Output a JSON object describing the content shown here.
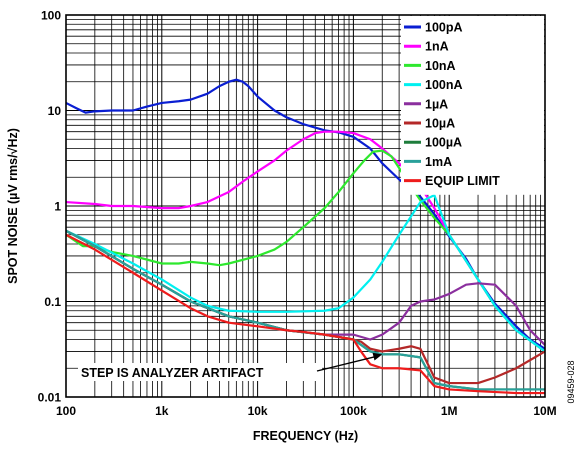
{
  "figure_id": "09459-028",
  "chart_data": {
    "type": "line",
    "xlabel": "FREQUENCY (Hz)",
    "ylabel": "SPOT NOISE (µV rms/√Hz)",
    "xscale": "log",
    "yscale": "log",
    "xlim": [
      100,
      10000000
    ],
    "ylim": [
      0.01,
      100
    ],
    "xticks": [
      100,
      1000,
      10000,
      100000,
      1000000,
      10000000
    ],
    "xtick_labels": [
      "100",
      "1k",
      "10k",
      "100k",
      "1M",
      "10M"
    ],
    "yticks": [
      0.01,
      0.1,
      1,
      10,
      100
    ],
    "ytick_labels": [
      "0.01",
      "0.1",
      "1",
      "10",
      "100"
    ],
    "grid": true,
    "legend_position": "top-right",
    "annotations": [
      {
        "text": "STEP IS ANALYZER ARTIFACT",
        "arrow_to": {
          "x": 200000,
          "y": 0.03
        }
      }
    ],
    "series": [
      {
        "name": "100pA",
        "color": "#0a1ed2",
        "x": [
          100,
          130,
          160,
          200,
          300,
          500,
          700,
          1000,
          1500,
          2000,
          3000,
          4000,
          5000,
          6000,
          7000,
          8000,
          10000,
          15000,
          20000,
          30000,
          50000,
          70000,
          100000,
          150000,
          200000,
          300000,
          500000,
          700000,
          1000000,
          1500000,
          2000000,
          3000000,
          5000000,
          7000000,
          10000000
        ],
        "y": [
          12,
          10.5,
          9.5,
          9.8,
          10,
          10,
          11,
          12,
          12.5,
          13,
          15,
          18,
          20,
          21,
          20,
          18,
          14,
          10,
          8.5,
          7.2,
          6.2,
          5.9,
          5.3,
          4,
          2.8,
          1.9,
          1.25,
          0.82,
          0.48,
          0.28,
          0.17,
          0.095,
          0.055,
          0.04,
          0.032
        ]
      },
      {
        "name": "1nA",
        "color": "#ff00ff",
        "x": [
          100,
          200,
          300,
          500,
          1000,
          1500,
          2000,
          3000,
          5000,
          7000,
          10000,
          15000,
          20000,
          30000,
          40000,
          50000,
          70000,
          100000,
          150000,
          200000,
          300000,
          500000,
          700000,
          1000000,
          2000000,
          3000000,
          5000000,
          10000000
        ],
        "y": [
          1.1,
          1.05,
          1.0,
          1.0,
          0.95,
          0.95,
          1.0,
          1.1,
          1.4,
          1.8,
          2.3,
          3.0,
          3.8,
          5.0,
          5.8,
          6.0,
          6.0,
          5.8,
          5.0,
          4.0,
          2.8,
          1.6,
          0.95,
          0.5,
          0.17,
          0.09,
          0.05,
          0.03
        ]
      },
      {
        "name": "10nA",
        "color": "#2ee82e",
        "x": [
          100,
          150,
          200,
          300,
          500,
          1000,
          1500,
          2000,
          3000,
          4000,
          5000,
          10000,
          15000,
          20000,
          30000,
          50000,
          70000,
          100000,
          130000,
          160000,
          200000,
          250000,
          300000,
          400000,
          500000,
          700000,
          1000000,
          2000000,
          3000000,
          5000000,
          10000000
        ],
        "y": [
          0.5,
          0.38,
          0.38,
          0.33,
          0.3,
          0.25,
          0.25,
          0.26,
          0.25,
          0.24,
          0.25,
          0.3,
          0.35,
          0.42,
          0.6,
          0.95,
          1.4,
          2.2,
          3.0,
          3.7,
          3.8,
          3.3,
          2.5,
          1.6,
          1.15,
          0.75,
          0.5,
          0.17,
          0.09,
          0.05,
          0.03
        ]
      },
      {
        "name": "100nA",
        "color": "#00f0f0",
        "x": [
          100,
          200,
          500,
          1000,
          2000,
          3000,
          5000,
          10000,
          20000,
          50000,
          70000,
          100000,
          150000,
          200000,
          300000,
          500000,
          700000,
          1000000,
          2000000,
          3000000,
          5000000,
          10000000
        ],
        "y": [
          0.55,
          0.4,
          0.25,
          0.17,
          0.11,
          0.09,
          0.08,
          0.078,
          0.078,
          0.08,
          0.085,
          0.11,
          0.17,
          0.26,
          0.5,
          1.1,
          1.3,
          0.5,
          0.17,
          0.09,
          0.05,
          0.03
        ]
      },
      {
        "name": "1µA",
        "color": "#8b2f9e",
        "x": [
          100,
          200,
          500,
          1000,
          2000,
          5000,
          10000,
          20000,
          50000,
          100000,
          150000,
          200000,
          300000,
          400000,
          500000,
          700000,
          1000000,
          1500000,
          2000000,
          3000000,
          5000000,
          7000000,
          10000000
        ],
        "y": [
          0.55,
          0.38,
          0.22,
          0.15,
          0.1,
          0.07,
          0.06,
          0.05,
          0.045,
          0.045,
          0.04,
          0.045,
          0.06,
          0.09,
          0.1,
          0.105,
          0.12,
          0.15,
          0.155,
          0.15,
          0.09,
          0.05,
          0.035
        ]
      },
      {
        "name": "10µA",
        "color": "#b42828",
        "x": [
          100,
          200,
          500,
          1000,
          2000,
          5000,
          10000,
          20000,
          50000,
          100000,
          120000,
          150000,
          200000,
          300000,
          400000,
          500000,
          700000,
          1000000,
          2000000,
          3000000,
          5000000,
          10000000
        ],
        "y": [
          0.55,
          0.38,
          0.22,
          0.15,
          0.1,
          0.07,
          0.06,
          0.05,
          0.045,
          0.04,
          0.038,
          0.032,
          0.03,
          0.032,
          0.034,
          0.032,
          0.016,
          0.014,
          0.014,
          0.016,
          0.02,
          0.03
        ]
      },
      {
        "name": "100µA",
        "color": "#1e7d3c",
        "x": [
          100,
          200,
          500,
          1000,
          2000,
          5000,
          10000,
          20000,
          50000,
          100000,
          150000,
          200000,
          300000,
          500000,
          700000,
          1000000,
          2000000,
          5000000,
          10000000
        ],
        "y": [
          0.55,
          0.38,
          0.22,
          0.15,
          0.1,
          0.07,
          0.06,
          0.05,
          0.045,
          0.04,
          0.03,
          0.028,
          0.028,
          0.026,
          0.014,
          0.013,
          0.012,
          0.012,
          0.012
        ]
      },
      {
        "name": "1mA",
        "color": "#2aa09a",
        "x": [
          100,
          200,
          500,
          1000,
          2000,
          5000,
          10000,
          20000,
          50000,
          100000,
          150000,
          200000,
          300000,
          500000,
          700000,
          1000000,
          2000000,
          5000000,
          10000000
        ],
        "y": [
          0.55,
          0.38,
          0.22,
          0.15,
          0.1,
          0.07,
          0.06,
          0.05,
          0.045,
          0.04,
          0.03,
          0.028,
          0.028,
          0.026,
          0.014,
          0.013,
          0.012,
          0.012,
          0.012
        ]
      },
      {
        "name": "EQUIP LIMIT",
        "color": "#ee1c1c",
        "x": [
          100,
          200,
          500,
          1000,
          2000,
          3000,
          5000,
          10000,
          20000,
          30000,
          50000,
          100000,
          120000,
          150000,
          200000,
          300000,
          500000,
          700000,
          1000000,
          2000000,
          5000000,
          10000000
        ],
        "y": [
          0.5,
          0.35,
          0.2,
          0.13,
          0.085,
          0.07,
          0.06,
          0.055,
          0.05,
          0.048,
          0.045,
          0.04,
          0.03,
          0.022,
          0.02,
          0.02,
          0.019,
          0.013,
          0.012,
          0.0115,
          0.011,
          0.011
        ]
      }
    ]
  }
}
